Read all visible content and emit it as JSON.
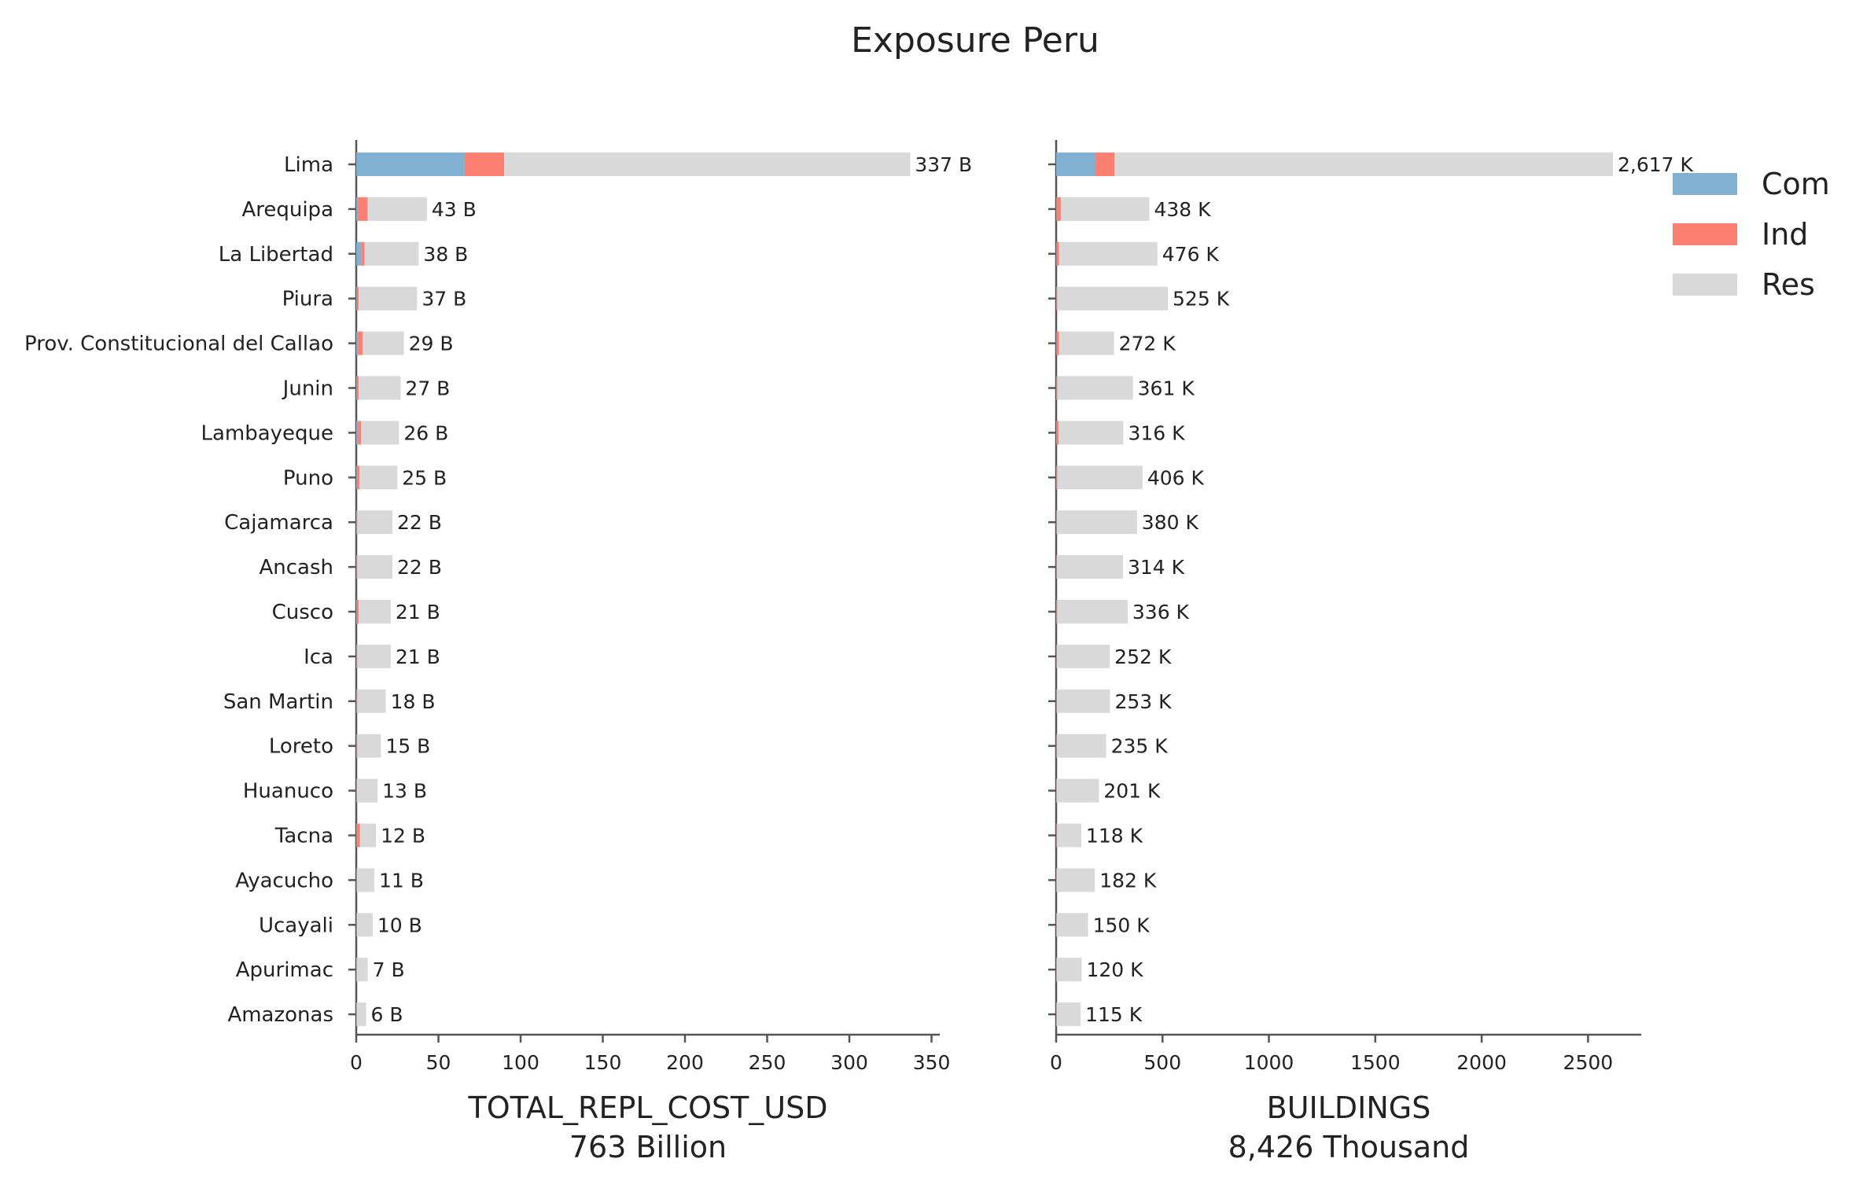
{
  "chart_data": {
    "type": "bar",
    "title": "Exposure Peru",
    "categories": [
      "Lima",
      "Arequipa",
      "La Libertad",
      "Piura",
      "Prov. Constitucional del Callao",
      "Junin",
      "Lambayeque",
      "Puno",
      "Cajamarca",
      "Ancash",
      "Cusco",
      "Ica",
      "San Martin",
      "Loreto",
      "Huanuco",
      "Tacna",
      "Ayacucho",
      "Ucayali",
      "Apurimac",
      "Amazonas"
    ],
    "legend": {
      "placement": "right",
      "entries": [
        {
          "name": "Com",
          "color": "#80b1d3"
        },
        {
          "name": "Ind",
          "color": "#fb8072"
        },
        {
          "name": "Res",
          "color": "#d9d9d9"
        }
      ]
    },
    "panels": [
      {
        "xlabel": "TOTAL_REPL_COST_USD",
        "xlabel2": "763 Billion",
        "xlim": [
          0,
          355
        ],
        "xticks": [
          0,
          50,
          100,
          150,
          200,
          250,
          300,
          350
        ],
        "series": [
          {
            "name": "Com",
            "values": [
              66,
              1,
              3,
              0.5,
              1,
              0.5,
              1,
              0.5,
              0.3,
              0.3,
              0.5,
              0.3,
              0.3,
              0.3,
              0.2,
              0.3,
              0.2,
              0.2,
              0.1,
              0.1
            ]
          },
          {
            "name": "Ind",
            "values": [
              24,
              6,
              2,
              1,
              3,
              1,
              2,
              1.5,
              0.3,
              0.3,
              1,
              0.3,
              0.3,
              0.3,
              0.2,
              2,
              0.2,
              0.2,
              0.1,
              0.1
            ]
          },
          {
            "name": "Res",
            "values": [
              247,
              36,
              33,
              35.5,
              25,
              25.5,
              23,
              23,
              21.4,
              21.4,
              19.5,
              20.4,
              17.4,
              14.4,
              12.6,
              9.7,
              10.6,
              9.6,
              6.8,
              5.8
            ]
          }
        ],
        "data_labels": [
          "337 B",
          "43 B",
          "38 B",
          "37 B",
          "29 B",
          "27 B",
          "26 B",
          "25 B",
          "22 B",
          "22 B",
          "21 B",
          "21 B",
          "18 B",
          "15 B",
          "13 B",
          "12 B",
          "11 B",
          "10 B",
          "7 B",
          "6 B"
        ]
      },
      {
        "xlabel": "BUILDINGS",
        "xlabel2": "8,426 Thousand",
        "xlim": [
          0,
          2750
        ],
        "xticks": [
          0,
          500,
          1000,
          1500,
          2000,
          2500
        ],
        "series": [
          {
            "name": "Com",
            "values": [
              185,
              2,
              3,
              2,
              3,
              2,
              2,
              2,
              1,
              1,
              2,
              1,
              1,
              1,
              1,
              1,
              1,
              1,
              1,
              1
            ]
          },
          {
            "name": "Ind",
            "values": [
              90,
              20,
              10,
              3,
              10,
              4,
              10,
              4,
              2,
              2,
              3,
              2,
              2,
              2,
              1,
              3,
              1,
              1,
              1,
              1
            ]
          },
          {
            "name": "Res",
            "values": [
              2342,
              416,
              463,
              520,
              259,
              355,
              304,
              400,
              377,
              311,
              331,
              249,
              250,
              232,
              199,
              114,
              180,
              148,
              118,
              113
            ]
          }
        ],
        "data_labels": [
          "2,617 K",
          "438 K",
          "476 K",
          "525 K",
          "272 K",
          "361 K",
          "316 K",
          "406 K",
          "380 K",
          "314 K",
          "336 K",
          "252 K",
          "253 K",
          "235 K",
          "201 K",
          "118 K",
          "182 K",
          "150 K",
          "120 K",
          "115 K"
        ]
      }
    ]
  }
}
